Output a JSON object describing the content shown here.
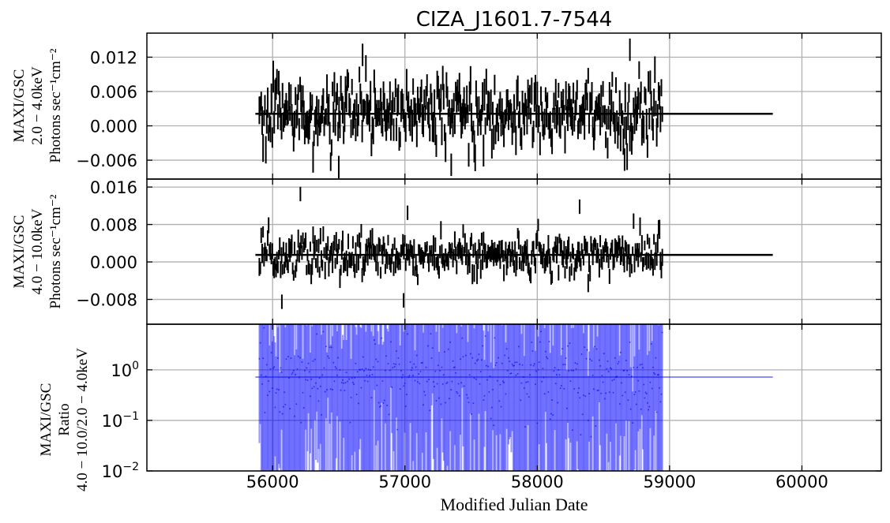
{
  "chart_data": [
    {
      "panel": "top",
      "type": "errorbar",
      "title": "CIZA_J1601.7-7544",
      "ylabel_lines": [
        "MAXI/GSC",
        "2.0 − 4.0keV",
        "Photons sec⁻¹cm⁻²"
      ],
      "xlim": [
        55050,
        60600
      ],
      "ylim": [
        -0.0093,
        0.0162
      ],
      "x_ticks": [
        56000,
        57000,
        58000,
        59000,
        60000
      ],
      "y_ticks": [
        -0.006,
        0.0,
        0.006,
        0.012
      ],
      "y_tick_labels": [
        "−0.006",
        "0.000",
        "0.006",
        "0.012"
      ],
      "color": "#000000",
      "grid": true,
      "data_range_mjd": [
        55900,
        58950
      ],
      "mean_level": {
        "x": [
          55870,
          59780
        ],
        "y": 0.0021
      },
      "approx_scatter_sd": 0.0028,
      "extreme_points": [
        {
          "x": 56500,
          "y": -0.0072
        },
        {
          "x": 56680,
          "y": 0.0124
        },
        {
          "x": 57350,
          "y": -0.0068
        },
        {
          "x": 58660,
          "y": -0.0059
        },
        {
          "x": 58700,
          "y": 0.0133
        }
      ]
    },
    {
      "panel": "middle",
      "type": "errorbar",
      "ylabel_lines": [
        "MAXI/GSC",
        "4.0 − 10.0keV",
        "Photons sec⁻¹cm⁻²"
      ],
      "xlim": [
        55050,
        60600
      ],
      "ylim": [
        -0.0133,
        0.0177
      ],
      "x_ticks": [
        56000,
        57000,
        58000,
        59000,
        60000
      ],
      "y_ticks": [
        -0.008,
        0.0,
        0.008,
        0.016
      ],
      "y_tick_labels": [
        "−0.008",
        "0.000",
        "0.008",
        "0.016"
      ],
      "color": "#000000",
      "grid": true,
      "data_range_mjd": [
        55900,
        58950
      ],
      "mean_level": {
        "x": [
          55870,
          59780
        ],
        "y": 0.0015
      },
      "approx_scatter_sd": 0.0022,
      "extreme_points": [
        {
          "x": 56070,
          "y": -0.0085
        },
        {
          "x": 56210,
          "y": 0.0145
        },
        {
          "x": 56990,
          "y": -0.0082
        },
        {
          "x": 57020,
          "y": 0.0105
        },
        {
          "x": 58320,
          "y": 0.0118
        }
      ]
    },
    {
      "panel": "bottom",
      "type": "errorbar",
      "ylabel_lines": [
        "MAXI/GSC",
        "Ratio",
        "4.0 − 10.0/2.0 − 4.0keV"
      ],
      "xlabel": "Modified Julian Date",
      "xlim": [
        55050,
        60600
      ],
      "ylim": [
        0.01,
        8.0
      ],
      "yscale": "log",
      "x_ticks": [
        56000,
        57000,
        58000,
        59000,
        60000
      ],
      "x_tick_labels": [
        "56000",
        "57000",
        "58000",
        "59000",
        "60000"
      ],
      "y_ticks": [
        0.01,
        0.1,
        1.0
      ],
      "y_tick_labels": [
        "10",
        "10",
        "10"
      ],
      "y_tick_exponents": [
        "−2",
        "−1",
        "0"
      ],
      "color": "#0000ff",
      "grid": true,
      "data_range_mjd": [
        55900,
        58950
      ],
      "mean_level": {
        "x": [
          55870,
          59780
        ],
        "y": 0.72
      }
    }
  ]
}
